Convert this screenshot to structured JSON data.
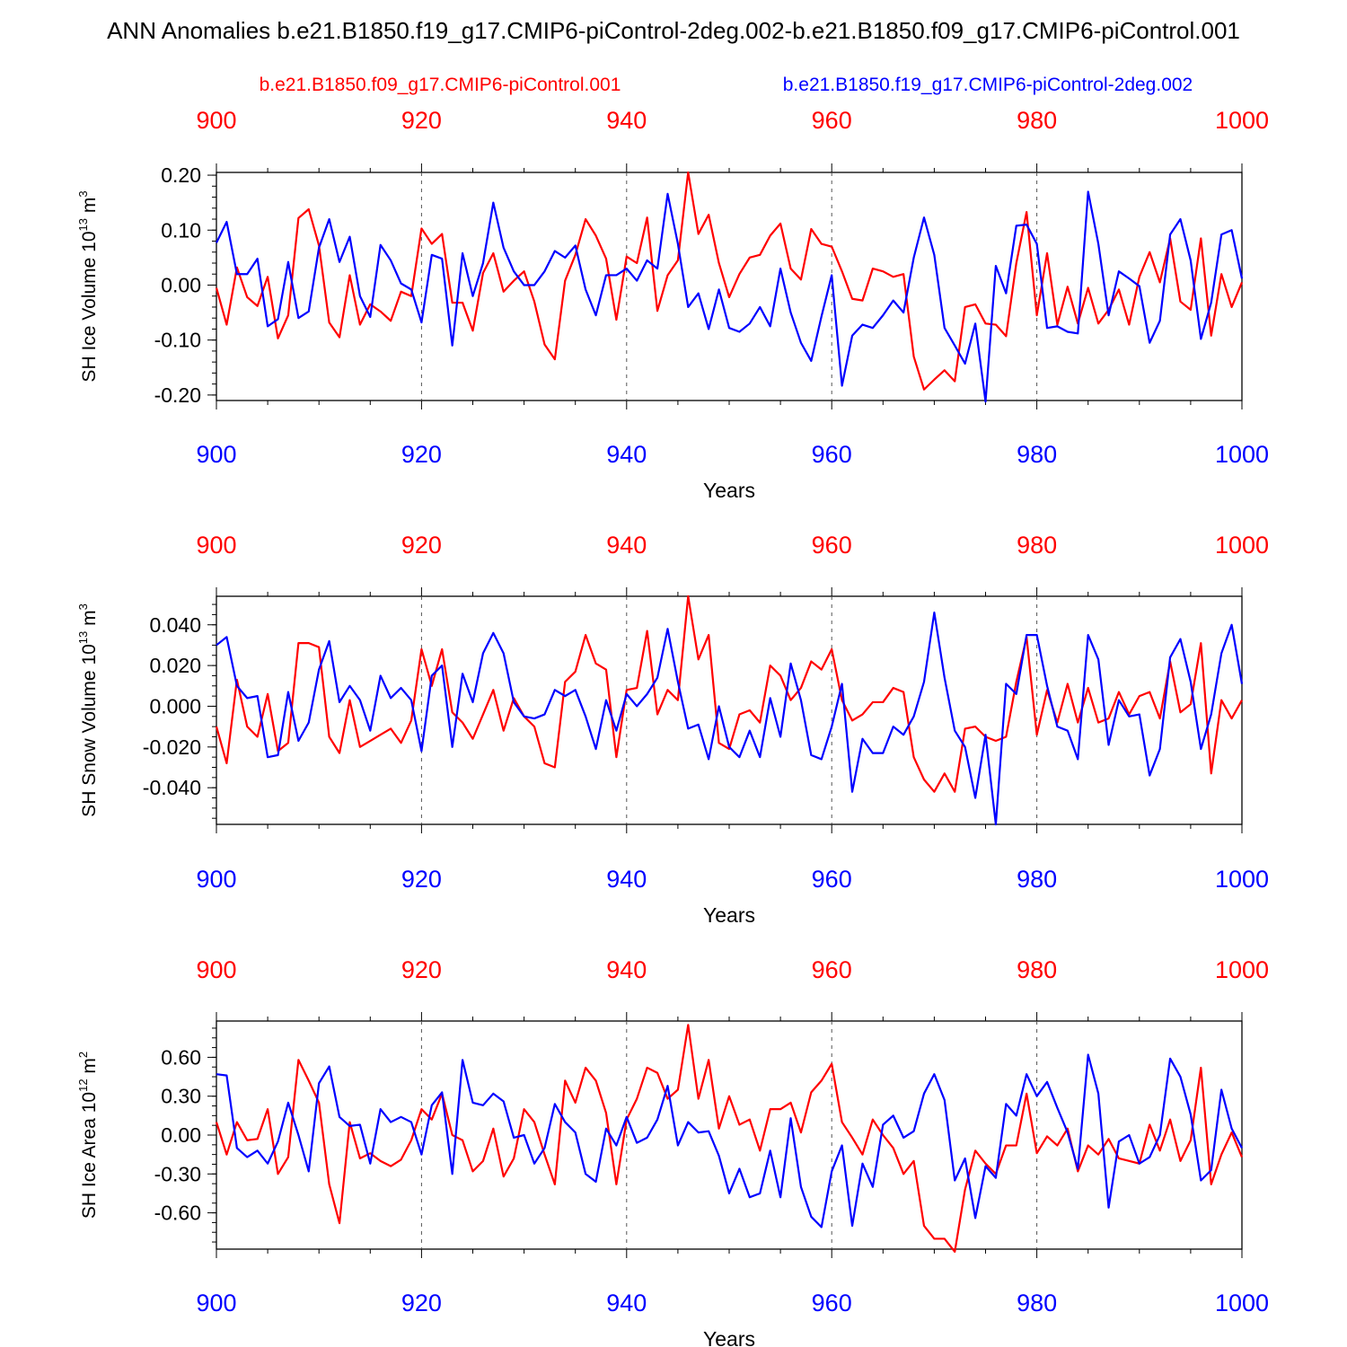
{
  "colors": {
    "ctrl": "#ff0000",
    "case": "#0000ff",
    "axis": "#000000",
    "grid": "#555555"
  },
  "title": "ANN Anomalies b.e21.B1850.f19_g17.CMIP6-piControl-2deg.002-b.e21.B1850.f09_g17.CMIP6-piControl.001",
  "legend": {
    "red": "b.e21.B1850.f09_g17.CMIP6-piControl.001",
    "blue": "b.e21.B1850.f19_g17.CMIP6-piControl-2deg.002"
  },
  "chart_data": [
    {
      "type": "line",
      "id": "ice-volume",
      "ylabel": {
        "text": "SH Ice Volume 10",
        "exp": "13",
        "unit": " m",
        "unit_exp": "3"
      },
      "xlabel": "Years",
      "xlim": [
        900,
        1000
      ],
      "x_ticks": [
        "900",
        "920",
        "940",
        "960",
        "980",
        "1000"
      ],
      "ylim": [
        -0.21,
        0.205
      ],
      "y_ticks": [
        -0.2,
        -0.1,
        0.0,
        0.1,
        0.2
      ],
      "y_tick_labels": [
        "-0.20",
        "-0.10",
        "0.00",
        "0.10",
        "0.20"
      ],
      "y_minor": 0.02,
      "x_start": 900,
      "series": [
        {
          "name": "b.e21.B1850.f09_g17.CMIP6-piControl.001",
          "color": "red",
          "values": [
            -0.005,
            -0.072,
            0.032,
            -0.022,
            -0.038,
            0.015,
            -0.097,
            -0.055,
            0.122,
            0.138,
            0.072,
            -0.068,
            -0.095,
            0.018,
            -0.072,
            -0.035,
            -0.048,
            -0.065,
            -0.012,
            -0.02,
            0.103,
            0.075,
            0.093,
            -0.032,
            -0.032,
            -0.083,
            0.022,
            0.058,
            -0.012,
            0.008,
            0.025,
            -0.03,
            -0.108,
            -0.135,
            0.008,
            0.055,
            0.12,
            0.09,
            0.048,
            -0.063,
            0.052,
            0.04,
            0.123,
            -0.047,
            0.018,
            0.045,
            0.205,
            0.093,
            0.128,
            0.04,
            -0.022,
            0.02,
            0.05,
            0.055,
            0.09,
            0.112,
            0.03,
            0.01,
            0.102,
            0.075,
            0.07,
            0.025,
            -0.025,
            -0.028,
            0.03,
            0.025,
            0.015,
            0.02,
            -0.13,
            -0.19,
            -0.172,
            -0.155,
            -0.175,
            -0.04,
            -0.035,
            -0.07,
            -0.072,
            -0.093,
            0.04,
            0.133,
            -0.055,
            0.058,
            -0.072,
            -0.003,
            -0.07,
            -0.005,
            -0.07,
            -0.045,
            -0.008,
            -0.072,
            0.015,
            0.06,
            0.005,
            0.085,
            -0.03,
            -0.045,
            0.085,
            -0.092,
            0.02,
            -0.04,
            0.005
          ]
        },
        {
          "name": "b.e21.B1850.f19_g17.CMIP6-piControl-2deg.002",
          "color": "blue",
          "values": [
            0.077,
            0.115,
            0.02,
            0.02,
            0.048,
            -0.075,
            -0.062,
            0.042,
            -0.06,
            -0.048,
            0.068,
            0.12,
            0.042,
            0.088,
            -0.02,
            -0.058,
            0.073,
            0.045,
            0.003,
            -0.008,
            -0.068,
            0.055,
            0.048,
            -0.11,
            0.058,
            -0.02,
            0.04,
            0.15,
            0.068,
            0.025,
            0.0,
            0.0,
            0.025,
            0.062,
            0.05,
            0.072,
            -0.008,
            -0.055,
            0.018,
            0.018,
            0.03,
            0.008,
            0.045,
            0.03,
            0.166,
            0.075,
            -0.04,
            -0.015,
            -0.08,
            -0.008,
            -0.078,
            -0.085,
            -0.07,
            -0.04,
            -0.075,
            0.03,
            -0.05,
            -0.105,
            -0.138,
            -0.057,
            0.018,
            -0.183,
            -0.092,
            -0.072,
            -0.078,
            -0.055,
            -0.028,
            -0.05,
            0.05,
            0.123,
            0.055,
            -0.078,
            -0.11,
            -0.143,
            -0.07,
            -0.212,
            0.035,
            -0.015,
            0.108,
            0.11,
            0.075,
            -0.078,
            -0.075,
            -0.085,
            -0.088,
            0.17,
            0.075,
            -0.055,
            0.025,
            0.012,
            -0.002,
            -0.105,
            -0.065,
            0.092,
            0.12,
            0.045,
            -0.098,
            -0.032,
            0.092,
            0.1,
            0.012
          ]
        }
      ]
    },
    {
      "type": "line",
      "id": "snow-volume",
      "ylabel": {
        "text": "SH Snow Volume 10",
        "exp": "13",
        "unit": " m",
        "unit_exp": "3"
      },
      "xlabel": "Years",
      "xlim": [
        900,
        1000
      ],
      "x_ticks": [
        "900",
        "920",
        "940",
        "960",
        "980",
        "1000"
      ],
      "ylim": [
        -0.058,
        0.054
      ],
      "y_ticks": [
        -0.04,
        -0.02,
        0.0,
        0.02,
        0.04
      ],
      "y_tick_labels": [
        "-0.040",
        "-0.020",
        "0.000",
        "0.020",
        "0.040"
      ],
      "y_minor": 0.005,
      "x_start": 900,
      "series": [
        {
          "name": "b.e21.B1850.f09_g17.CMIP6-piControl.001",
          "color": "red",
          "values": [
            -0.01,
            -0.028,
            0.013,
            -0.01,
            -0.015,
            0.006,
            -0.022,
            -0.018,
            0.031,
            0.031,
            0.029,
            -0.015,
            -0.023,
            0.003,
            -0.02,
            -0.017,
            -0.014,
            -0.011,
            -0.018,
            -0.007,
            0.028,
            0.01,
            0.028,
            -0.003,
            -0.008,
            -0.016,
            -0.004,
            0.008,
            -0.012,
            0.004,
            -0.005,
            -0.01,
            -0.028,
            -0.03,
            0.012,
            0.017,
            0.035,
            0.021,
            0.018,
            -0.025,
            0.008,
            0.009,
            0.037,
            -0.004,
            0.008,
            0.003,
            0.054,
            0.023,
            0.035,
            -0.018,
            -0.021,
            -0.004,
            -0.002,
            -0.008,
            0.02,
            0.015,
            0.003,
            0.009,
            0.022,
            0.018,
            0.028,
            0.003,
            -0.007,
            -0.004,
            0.002,
            0.002,
            0.009,
            0.007,
            -0.025,
            -0.036,
            -0.042,
            -0.033,
            -0.042,
            -0.011,
            -0.01,
            -0.015,
            -0.017,
            -0.015,
            0.012,
            0.034,
            -0.014,
            0.008,
            -0.008,
            0.011,
            -0.008,
            0.009,
            -0.008,
            -0.006,
            0.007,
            -0.004,
            0.005,
            0.007,
            -0.006,
            0.022,
            -0.003,
            0.001,
            0.031,
            -0.033,
            0.003,
            -0.006,
            0.003
          ]
        },
        {
          "name": "b.e21.B1850.f19_g17.CMIP6-piControl-2deg.002",
          "color": "blue",
          "values": [
            0.03,
            0.034,
            0.01,
            0.004,
            0.005,
            -0.025,
            -0.024,
            0.007,
            -0.017,
            -0.008,
            0.018,
            0.032,
            0.002,
            0.01,
            0.003,
            -0.012,
            0.015,
            0.004,
            0.009,
            0.003,
            -0.022,
            0.015,
            0.02,
            -0.02,
            0.016,
            0.002,
            0.026,
            0.036,
            0.026,
            0.002,
            -0.005,
            -0.006,
            -0.004,
            0.008,
            0.005,
            0.008,
            -0.005,
            -0.021,
            0.003,
            -0.012,
            0.006,
            0.0,
            0.006,
            0.014,
            0.038,
            0.012,
            -0.011,
            -0.009,
            -0.026,
            0.0,
            -0.02,
            -0.025,
            -0.012,
            -0.025,
            0.004,
            -0.015,
            0.021,
            0.003,
            -0.024,
            -0.026,
            -0.01,
            0.011,
            -0.042,
            -0.016,
            -0.023,
            -0.023,
            -0.01,
            -0.014,
            -0.005,
            0.012,
            0.046,
            0.014,
            -0.012,
            -0.02,
            -0.045,
            -0.014,
            -0.058,
            0.011,
            0.006,
            0.035,
            0.035,
            0.01,
            -0.01,
            -0.012,
            -0.026,
            0.035,
            0.023,
            -0.019,
            0.003,
            -0.005,
            -0.004,
            -0.034,
            -0.021,
            0.024,
            0.033,
            0.012,
            -0.021,
            -0.004,
            0.026,
            0.04,
            0.011
          ]
        }
      ]
    },
    {
      "type": "line",
      "id": "ice-area",
      "ylabel": {
        "text": "SH Ice Area 10",
        "exp": "12",
        "unit": " m",
        "unit_exp": "2"
      },
      "xlabel": "Years",
      "xlim": [
        900,
        1000
      ],
      "x_ticks": [
        "900",
        "920",
        "940",
        "960",
        "980",
        "1000"
      ],
      "ylim": [
        -0.88,
        0.88
      ],
      "y_ticks": [
        -0.6,
        -0.3,
        0.0,
        0.3,
        0.6
      ],
      "y_tick_labels": [
        "-0.60",
        "-0.30",
        "0.00",
        "0.30",
        "0.60"
      ],
      "y_minor": 0.075,
      "x_start": 900,
      "series": [
        {
          "name": "b.e21.B1850.f09_g17.CMIP6-piControl.001",
          "color": "red",
          "values": [
            0.1,
            -0.15,
            0.1,
            -0.04,
            -0.03,
            0.2,
            -0.3,
            -0.17,
            0.58,
            0.42,
            0.25,
            -0.38,
            -0.68,
            0.1,
            -0.18,
            -0.14,
            -0.2,
            -0.24,
            -0.19,
            -0.04,
            0.2,
            0.12,
            0.32,
            0.0,
            -0.04,
            -0.28,
            -0.2,
            0.05,
            -0.32,
            -0.18,
            0.2,
            0.1,
            -0.15,
            -0.38,
            0.42,
            0.25,
            0.52,
            0.42,
            0.17,
            -0.38,
            0.12,
            0.28,
            0.52,
            0.48,
            0.28,
            0.35,
            0.85,
            0.28,
            0.58,
            0.05,
            0.3,
            0.08,
            0.12,
            -0.12,
            0.2,
            0.2,
            0.25,
            0.02,
            0.33,
            0.42,
            0.55,
            0.1,
            -0.02,
            -0.15,
            0.12,
            0.0,
            -0.1,
            -0.3,
            -0.2,
            -0.7,
            -0.8,
            -0.8,
            -0.9,
            -0.42,
            -0.12,
            -0.22,
            -0.3,
            -0.08,
            -0.08,
            0.32,
            -0.14,
            -0.01,
            -0.08,
            0.05,
            -0.28,
            -0.08,
            -0.15,
            -0.03,
            -0.18,
            -0.2,
            -0.22,
            0.08,
            -0.12,
            0.12,
            -0.2,
            -0.04,
            0.52,
            -0.38,
            -0.15,
            0.02,
            -0.17
          ]
        },
        {
          "name": "b.e21.B1850.f19_g17.CMIP6-piControl-2deg.002",
          "color": "blue",
          "values": [
            0.47,
            0.46,
            -0.1,
            -0.17,
            -0.12,
            -0.22,
            -0.05,
            0.25,
            0.0,
            -0.28,
            0.4,
            0.53,
            0.14,
            0.07,
            0.08,
            -0.22,
            0.2,
            0.1,
            0.14,
            0.1,
            -0.15,
            0.23,
            0.33,
            -0.3,
            0.58,
            0.25,
            0.23,
            0.32,
            0.26,
            -0.02,
            0.0,
            -0.22,
            -0.1,
            0.24,
            0.1,
            0.02,
            -0.3,
            -0.36,
            0.05,
            -0.08,
            0.14,
            -0.06,
            -0.02,
            0.12,
            0.38,
            -0.08,
            0.1,
            0.02,
            0.03,
            -0.16,
            -0.45,
            -0.26,
            -0.48,
            -0.45,
            -0.12,
            -0.48,
            0.13,
            -0.4,
            -0.63,
            -0.71,
            -0.28,
            -0.08,
            -0.7,
            -0.22,
            -0.4,
            0.08,
            0.15,
            -0.02,
            0.03,
            0.32,
            0.47,
            0.27,
            -0.35,
            -0.18,
            -0.64,
            -0.24,
            -0.33,
            0.24,
            0.15,
            0.47,
            0.3,
            0.41,
            0.21,
            0.02,
            -0.26,
            0.62,
            0.32,
            -0.56,
            -0.05,
            0.0,
            -0.22,
            -0.17,
            0.0,
            0.59,
            0.45,
            0.16,
            -0.35,
            -0.27,
            0.35,
            0.05,
            -0.1
          ]
        }
      ]
    }
  ]
}
